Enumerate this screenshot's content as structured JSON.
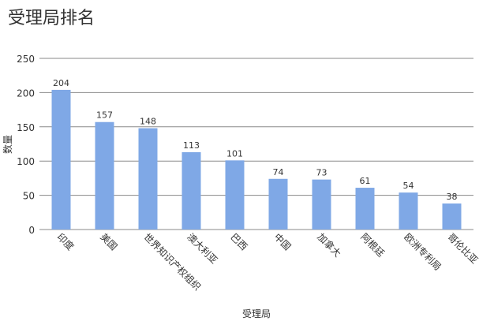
{
  "chart_data": {
    "type": "bar",
    "title": "受理局排名",
    "xlabel": "受理局",
    "ylabel": "数量",
    "categories": [
      "印度",
      "美国",
      "世界知识产权组织",
      "澳大利亚",
      "巴西",
      "中国",
      "加拿大",
      "阿根廷",
      "欧洲专利局",
      "哥伦比亚"
    ],
    "values": [
      204,
      157,
      148,
      113,
      101,
      74,
      73,
      61,
      54,
      38
    ],
    "color": "#7fa8e6",
    "ylim": [
      0,
      250
    ],
    "yticks": [
      0,
      50,
      100,
      150,
      200,
      250
    ],
    "grid": true
  }
}
